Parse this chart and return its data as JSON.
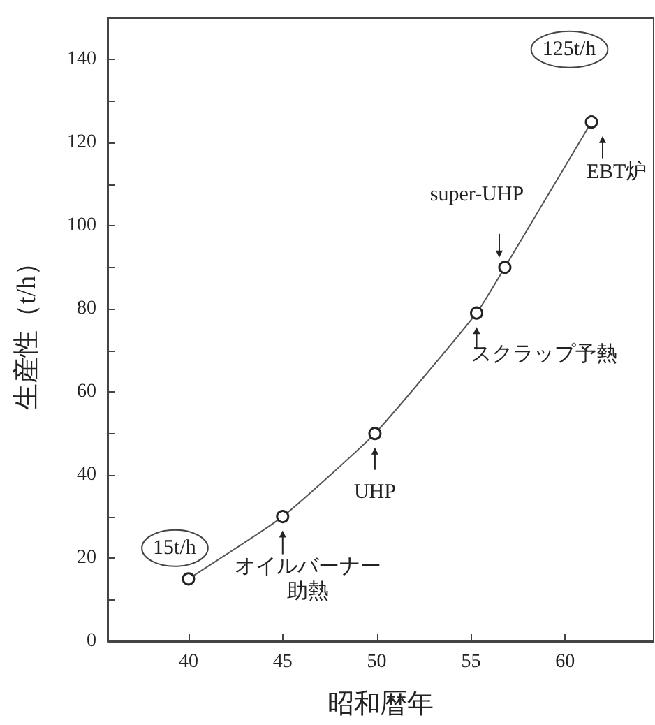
{
  "chart_data": {
    "type": "line",
    "xlabel": "昭和暦年",
    "ylabel": "生産性（t/h）",
    "x": [
      40,
      45,
      49.9,
      55.3,
      56.8,
      61.4
    ],
    "series": [
      {
        "color": "#555555",
        "values": [
          15,
          30,
          50,
          79,
          90,
          125
        ]
      }
    ],
    "xlim": [
      35.7,
      64.7
    ],
    "xticks": [
      40,
      45,
      50,
      55,
      60
    ],
    "ylim": [
      0,
      150
    ],
    "yticks": [
      0,
      {
        "value": 10,
        "label": null
      },
      20,
      {
        "value": 30,
        "label": null
      },
      40,
      {
        "value": 50,
        "label": null
      },
      60,
      {
        "value": 70,
        "label": null
      },
      80,
      {
        "value": 90,
        "label": null
      },
      100,
      {
        "value": 110,
        "label": null
      },
      120,
      {
        "value": 130,
        "label": null
      },
      140
    ],
    "marker": "circle",
    "line_style": "solid",
    "grid": false,
    "annotations": [
      {
        "text": "15t/h",
        "x": 40,
        "y": 15
      },
      {
        "text": "オイルバーナー",
        "x": 45,
        "y": 30
      },
      "助熱",
      {
        "text": "UHP",
        "x": 49.9,
        "y": 50
      },
      {
        "text": "スクラップ予熱",
        "x": 55.3,
        "y": 79
      },
      {
        "text": "super-UHP",
        "x": 56.8,
        "y": 90
      },
      {
        "text": "125t/h",
        "x": 61.4,
        "y": 125
      },
      {
        "text": "EBT炉",
        "x": 61.4,
        "y": 125
      }
    ]
  }
}
